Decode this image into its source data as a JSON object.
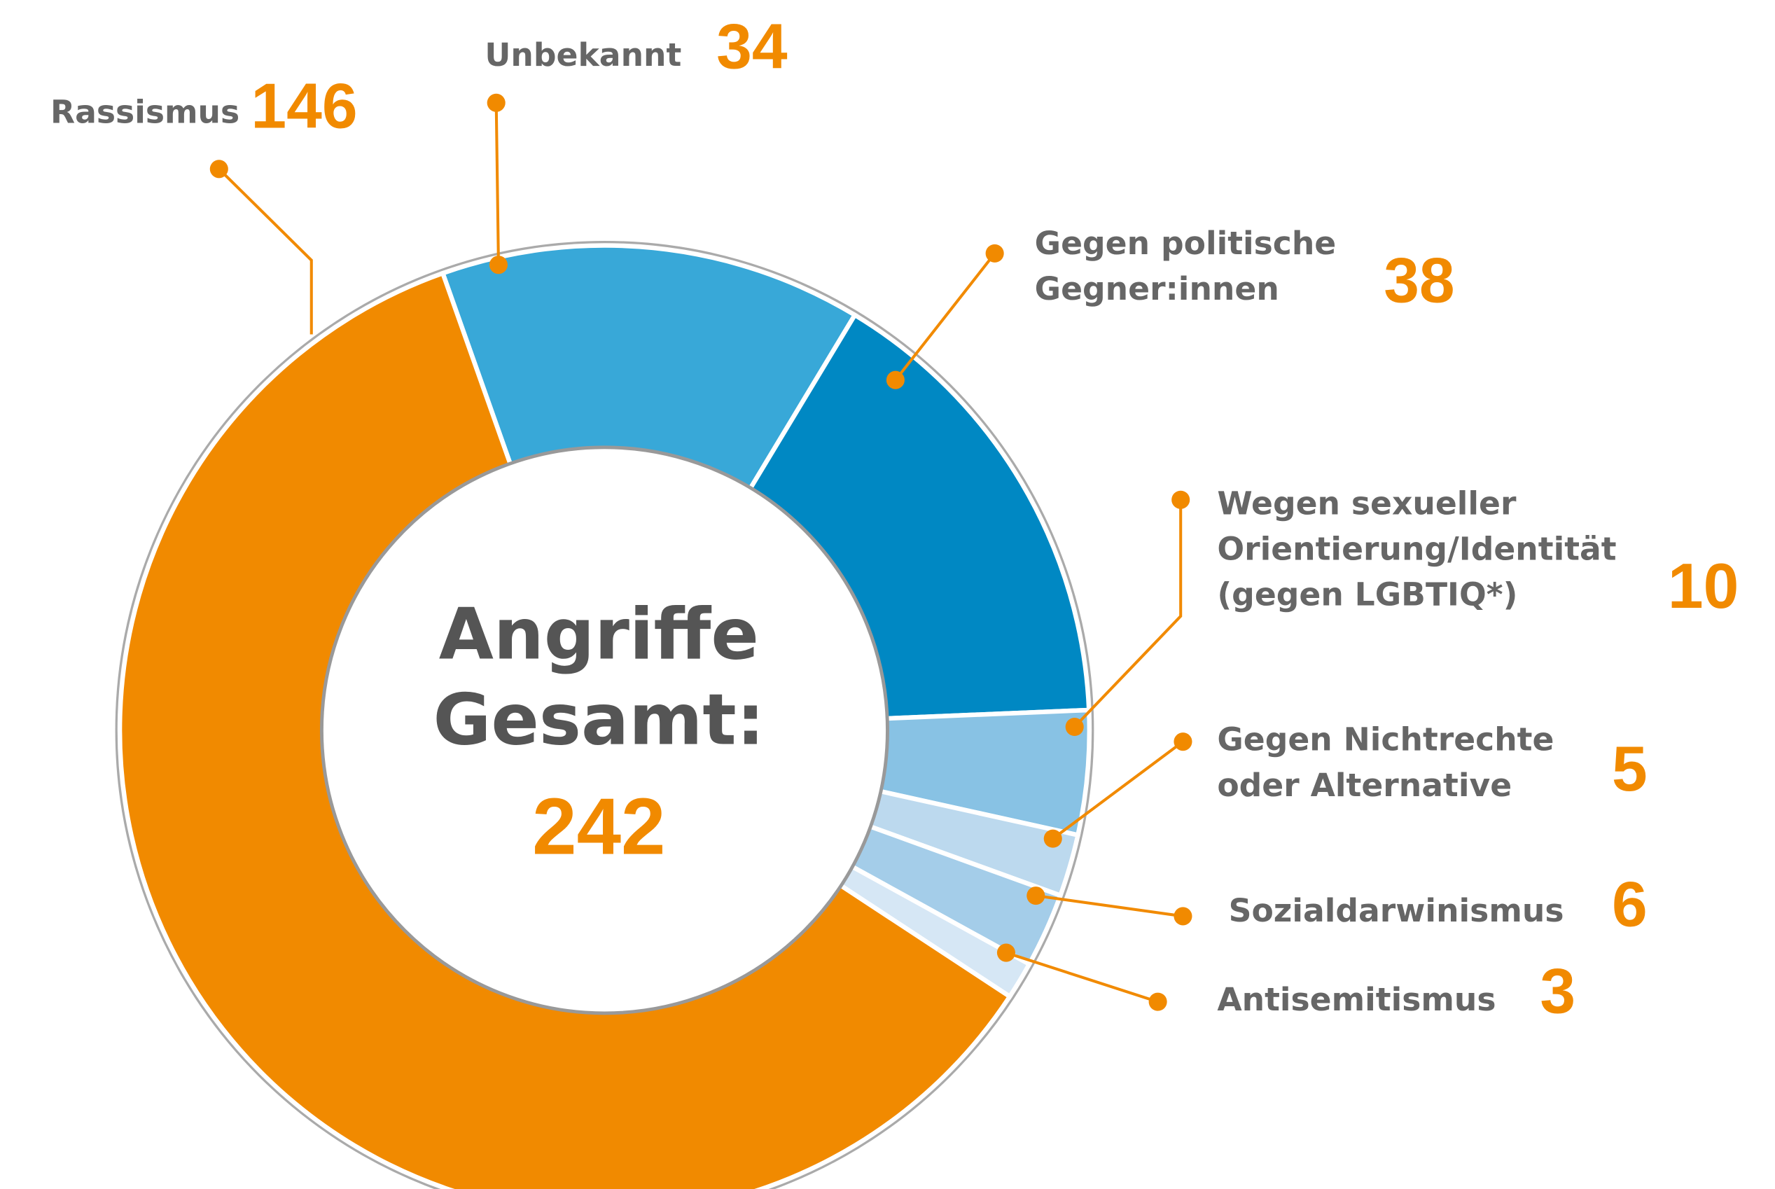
{
  "chart_data": {
    "type": "donut",
    "categories": [
      "Unbekannt",
      [
        "Gegen politische",
        "Gegner:innen"
      ],
      [
        "Wegen sexueller",
        "Orientierung/Identität",
        "(gegen LGBTIQ*)"
      ],
      [
        "Gegen Nichtrechte",
        "oder Alternative"
      ],
      "Sozialdarwinismus",
      "Antisemitismus",
      "Rassismus"
    ],
    "values": [
      34,
      38,
      10,
      5,
      6,
      3,
      146
    ],
    "colors": [
      "#38a8d8",
      "#0088c3",
      "#88c2e4",
      "#bcd9ee",
      "#a4cde9",
      "#d6e7f5",
      "#f18a00"
    ],
    "center_label": [
      "Angriffe",
      "Gesamt:"
    ],
    "total": 242
  }
}
